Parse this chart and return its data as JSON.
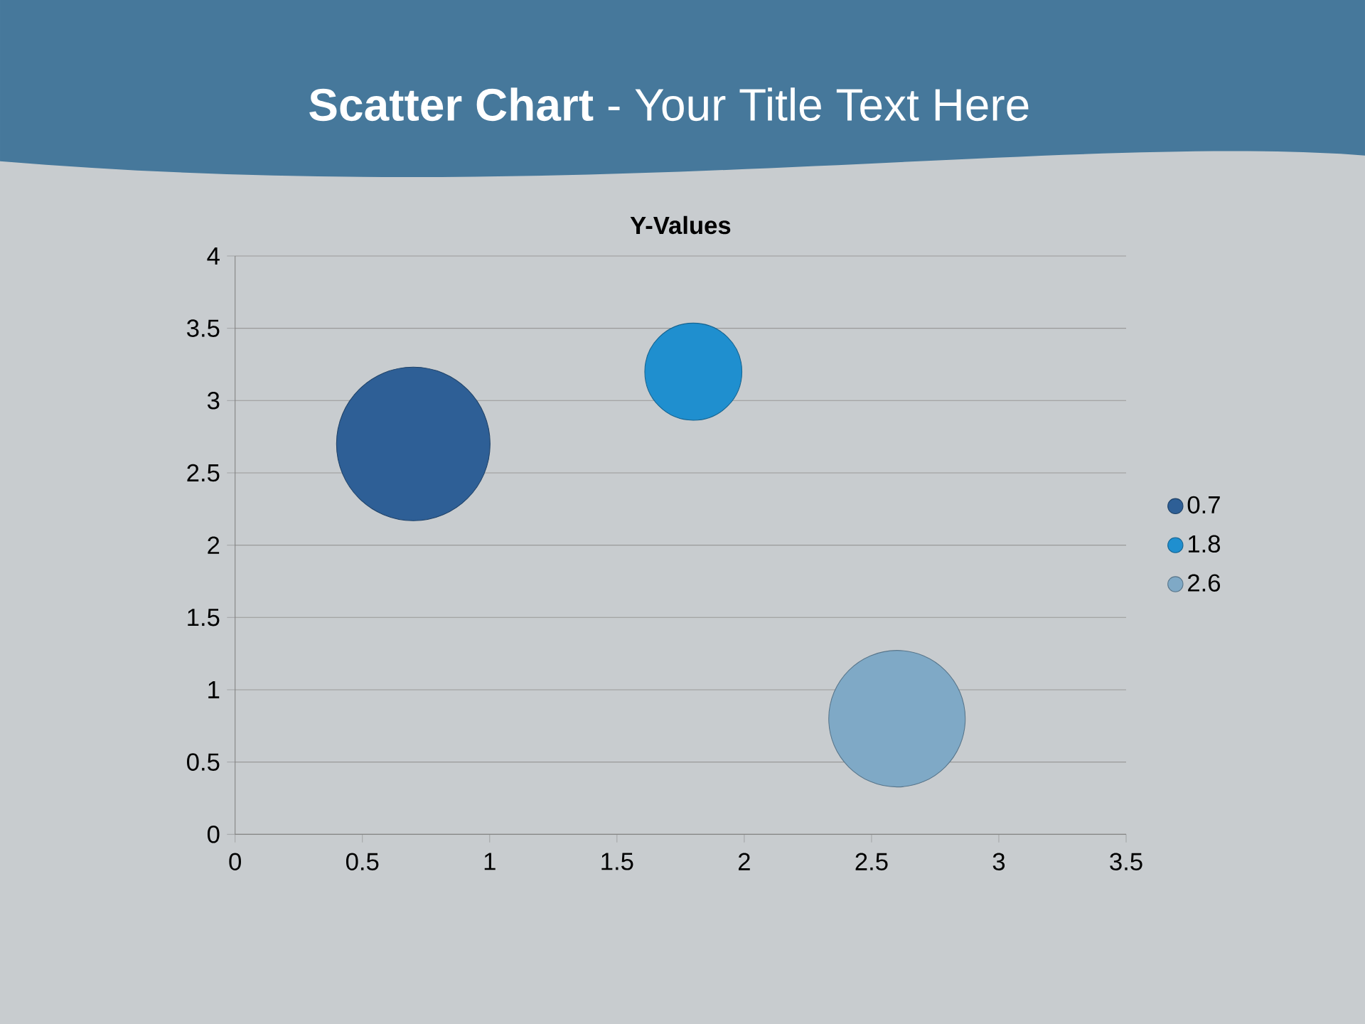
{
  "chart_data": {
    "type": "bubble",
    "title": "**Scatter Chart** - Your Title Text Here",
    "subtitle": "Y-Values",
    "xlim": [
      0,
      3.5
    ],
    "xticks": [
      0,
      0.5,
      1,
      1.5,
      2,
      2.5,
      3,
      3.5
    ],
    "ylim": [
      0,
      4
    ],
    "yticks": [
      0,
      0.5,
      1,
      1.5,
      2,
      2.5,
      3,
      3.5,
      4
    ],
    "grid": "y",
    "legend": "right",
    "series": [
      {
        "name": "0.7",
        "color": "#2e5f96",
        "x": [
          0.7
        ],
        "values": [
          2.7
        ],
        "sizes": [
          1
        ]
      },
      {
        "name": "1.8",
        "color": "#1f8fcf",
        "x": [
          1.8
        ],
        "values": [
          3.2
        ],
        "sizes": [
          0.4
        ]
      },
      {
        "name": "2.6",
        "color": "#7fa9c6",
        "x": [
          2.6
        ],
        "values": [
          0.8
        ],
        "sizes": [
          0.79
        ]
      }
    ]
  }
}
